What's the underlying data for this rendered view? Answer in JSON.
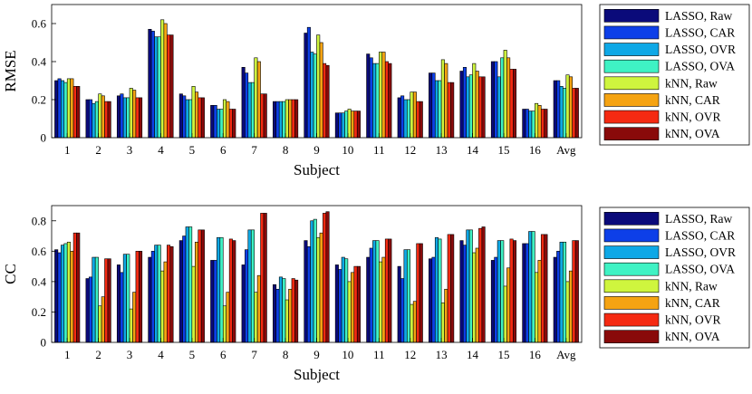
{
  "chart_data": [
    {
      "type": "bar",
      "ylabel": "RMSE",
      "xlabel": "Subject",
      "ylim": [
        0,
        0.7
      ],
      "yticks": [
        0,
        0.2,
        0.4,
        0.6
      ],
      "grid": false,
      "legend_position": "right",
      "categories": [
        "1",
        "2",
        "3",
        "4",
        "5",
        "6",
        "7",
        "8",
        "9",
        "10",
        "11",
        "12",
        "13",
        "14",
        "15",
        "16",
        "Avg"
      ],
      "series": [
        {
          "name": "LASSO, Raw",
          "values": [
            0.3,
            0.2,
            0.22,
            0.57,
            0.23,
            0.17,
            0.37,
            0.19,
            0.55,
            0.13,
            0.44,
            0.21,
            0.34,
            0.35,
            0.4,
            0.15,
            0.3
          ]
        },
        {
          "name": "LASSO, CAR",
          "values": [
            0.31,
            0.2,
            0.23,
            0.56,
            0.22,
            0.17,
            0.34,
            0.19,
            0.58,
            0.13,
            0.42,
            0.22,
            0.34,
            0.37,
            0.4,
            0.15,
            0.3
          ]
        },
        {
          "name": "LASSO, OVR",
          "values": [
            0.3,
            0.18,
            0.21,
            0.53,
            0.2,
            0.15,
            0.29,
            0.19,
            0.45,
            0.13,
            0.39,
            0.2,
            0.3,
            0.32,
            0.32,
            0.14,
            0.27
          ]
        },
        {
          "name": "LASSO, OVA",
          "values": [
            0.29,
            0.19,
            0.21,
            0.53,
            0.2,
            0.15,
            0.29,
            0.19,
            0.44,
            0.14,
            0.39,
            0.2,
            0.3,
            0.33,
            0.42,
            0.14,
            0.26
          ]
        },
        {
          "name": "kNN, Raw",
          "values": [
            0.31,
            0.23,
            0.26,
            0.62,
            0.27,
            0.2,
            0.42,
            0.2,
            0.54,
            0.15,
            0.45,
            0.24,
            0.41,
            0.39,
            0.46,
            0.18,
            0.33
          ]
        },
        {
          "name": "kNN, CAR",
          "values": [
            0.31,
            0.22,
            0.25,
            0.6,
            0.24,
            0.19,
            0.4,
            0.2,
            0.5,
            0.14,
            0.45,
            0.24,
            0.39,
            0.35,
            0.42,
            0.17,
            0.32
          ]
        },
        {
          "name": "kNN, OVR",
          "values": [
            0.27,
            0.19,
            0.21,
            0.54,
            0.21,
            0.15,
            0.23,
            0.2,
            0.39,
            0.14,
            0.4,
            0.19,
            0.29,
            0.32,
            0.36,
            0.15,
            0.26
          ]
        },
        {
          "name": "kNN, OVA",
          "values": [
            0.27,
            0.19,
            0.21,
            0.54,
            0.21,
            0.15,
            0.23,
            0.2,
            0.38,
            0.14,
            0.39,
            0.19,
            0.29,
            0.32,
            0.36,
            0.15,
            0.26
          ]
        }
      ]
    },
    {
      "type": "bar",
      "ylabel": "CC",
      "xlabel": "Subject",
      "ylim": [
        0,
        0.9
      ],
      "yticks": [
        0,
        0.2,
        0.4,
        0.6,
        0.8
      ],
      "grid": false,
      "legend_position": "right",
      "categories": [
        "1",
        "2",
        "3",
        "4",
        "5",
        "6",
        "7",
        "8",
        "9",
        "10",
        "11",
        "12",
        "13",
        "14",
        "15",
        "16",
        "Avg"
      ],
      "series": [
        {
          "name": "LASSO, Raw",
          "values": [
            0.61,
            0.42,
            0.51,
            0.56,
            0.67,
            0.54,
            0.51,
            0.38,
            0.67,
            0.51,
            0.56,
            0.5,
            0.55,
            0.67,
            0.54,
            0.65,
            0.56
          ]
        },
        {
          "name": "LASSO, CAR",
          "values": [
            0.59,
            0.43,
            0.46,
            0.6,
            0.7,
            0.54,
            0.61,
            0.35,
            0.63,
            0.48,
            0.62,
            0.42,
            0.56,
            0.64,
            0.56,
            0.65,
            0.6
          ]
        },
        {
          "name": "LASSO, OVR",
          "values": [
            0.64,
            0.56,
            0.58,
            0.64,
            0.76,
            0.69,
            0.74,
            0.43,
            0.8,
            0.56,
            0.67,
            0.61,
            0.69,
            0.74,
            0.67,
            0.73,
            0.66
          ]
        },
        {
          "name": "LASSO, OVA",
          "values": [
            0.65,
            0.56,
            0.58,
            0.64,
            0.76,
            0.69,
            0.74,
            0.42,
            0.81,
            0.55,
            0.67,
            0.61,
            0.68,
            0.74,
            0.67,
            0.73,
            0.66
          ]
        },
        {
          "name": "kNN, Raw",
          "values": [
            0.66,
            0.24,
            0.22,
            0.47,
            0.5,
            0.24,
            0.33,
            0.28,
            0.69,
            0.4,
            0.53,
            0.25,
            0.26,
            0.59,
            0.37,
            0.46,
            0.4
          ]
        },
        {
          "name": "kNN, CAR",
          "values": [
            0.6,
            0.3,
            0.33,
            0.53,
            0.66,
            0.33,
            0.44,
            0.35,
            0.72,
            0.46,
            0.56,
            0.27,
            0.35,
            0.62,
            0.49,
            0.54,
            0.47
          ]
        },
        {
          "name": "kNN, OVR",
          "values": [
            0.72,
            0.55,
            0.6,
            0.64,
            0.74,
            0.68,
            0.85,
            0.42,
            0.85,
            0.5,
            0.68,
            0.65,
            0.71,
            0.75,
            0.68,
            0.71,
            0.67
          ]
        },
        {
          "name": "kNN, OVA",
          "values": [
            0.72,
            0.55,
            0.6,
            0.63,
            0.74,
            0.67,
            0.85,
            0.41,
            0.86,
            0.5,
            0.68,
            0.65,
            0.71,
            0.76,
            0.67,
            0.71,
            0.67
          ]
        }
      ]
    }
  ],
  "colors": {
    "series": [
      "#0a0a7a",
      "#0d3fe8",
      "#0ea8e6",
      "#3ff2c4",
      "#cff53e",
      "#f5a312",
      "#f52a12",
      "#890a0a"
    ],
    "axis": "#000000",
    "background": "#ffffff"
  }
}
